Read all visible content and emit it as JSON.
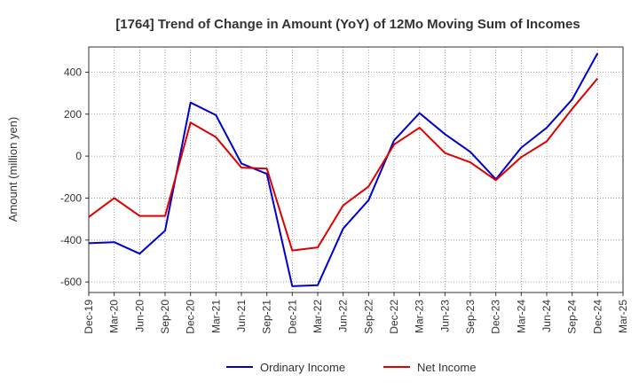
{
  "chart_data": {
    "type": "line",
    "title": "[1764]  Trend of Change in Amount (YoY) of 12Mo Moving Sum of Incomes",
    "xlabel": "",
    "ylabel": "Amount (million yen)",
    "ylim": [
      -650,
      520
    ],
    "yticks": [
      400,
      200,
      0,
      -200,
      -400,
      -600
    ],
    "grid": true,
    "legend_position": "bottom",
    "categories": [
      "Dec-19",
      "Mar-20",
      "Jun-20",
      "Sep-20",
      "Dec-20",
      "Mar-21",
      "Jun-21",
      "Sep-21",
      "Dec-21",
      "Mar-22",
      "Jun-22",
      "Sep-22",
      "Dec-22",
      "Mar-23",
      "Jun-23",
      "Sep-23",
      "Dec-23",
      "Mar-24",
      "Jun-24",
      "Sep-24",
      "Dec-24",
      "Mar-25"
    ],
    "series": [
      {
        "name": "Ordinary Income",
        "color": "#0000cc",
        "values": [
          -415,
          -410,
          -465,
          -355,
          255,
          195,
          -35,
          -85,
          -620,
          -615,
          -345,
          -210,
          75,
          205,
          105,
          20,
          -110,
          40,
          135,
          270,
          490,
          null
        ]
      },
      {
        "name": "Net Income",
        "color": "#dd0000",
        "values": [
          -290,
          -200,
          -285,
          -285,
          160,
          90,
          -55,
          -60,
          -450,
          -435,
          -235,
          -145,
          55,
          135,
          15,
          -30,
          -115,
          -5,
          70,
          225,
          370,
          null
        ]
      }
    ]
  }
}
